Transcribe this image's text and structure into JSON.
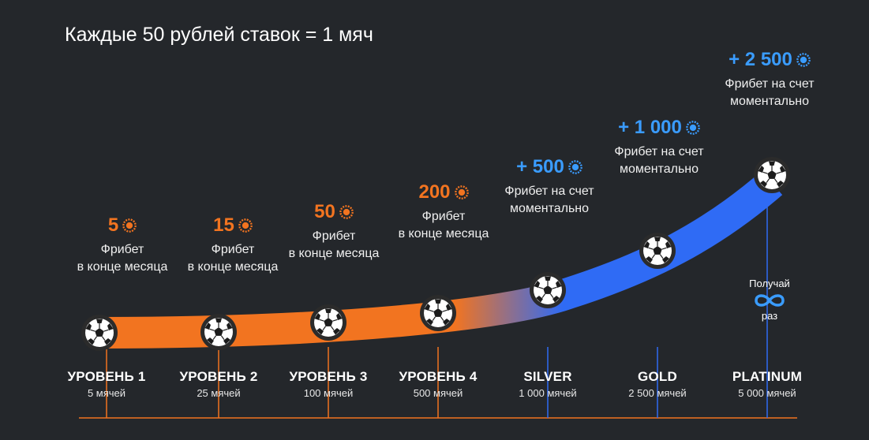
{
  "header": {
    "title": "Каждые 50 рублей ставок = 1 мяч"
  },
  "colors": {
    "orange": "#f27420",
    "blue": "#2f6bf5",
    "light_blue": "#3a9cff",
    "background": "#24272b"
  },
  "rewards": [
    {
      "amount": "5",
      "desc1": "Фрибет",
      "desc2": "в конце месяца",
      "coin": "orange-coin-icon"
    },
    {
      "amount": "15",
      "desc1": "Фрибет",
      "desc2": "в конце месяца",
      "coin": "orange-coin-icon"
    },
    {
      "amount": "50",
      "desc1": "Фрибет",
      "desc2": "в конце месяца",
      "coin": "orange-coin-icon"
    },
    {
      "amount": "200",
      "desc1": "Фрибет",
      "desc2": "в конце месяца",
      "coin": "orange-coin-icon"
    },
    {
      "amount": "+ 500",
      "desc1": "Фрибет на счет",
      "desc2": "моментально",
      "coin": "blue-coin-icon"
    },
    {
      "amount": "+ 1 000",
      "desc1": "Фрибет на счет",
      "desc2": "моментально",
      "coin": "blue-coin-icon"
    },
    {
      "amount": "+ 2 500",
      "desc1": "Фрибет на счет",
      "desc2": "моментально",
      "coin": "blue-coin-icon"
    }
  ],
  "levels": [
    {
      "name": "УРОВЕНЬ 1",
      "balls": "5 мячей"
    },
    {
      "name": "УРОВЕНЬ 2",
      "balls": "25 мячей"
    },
    {
      "name": "УРОВЕНЬ 3",
      "balls": "100 мячей"
    },
    {
      "name": "УРОВЕНЬ 4",
      "balls": "500 мячей"
    },
    {
      "name": "SILVER",
      "balls": "1 000 мячей"
    },
    {
      "name": "GOLD",
      "balls": "2 500 мячей"
    },
    {
      "name": "PLATINUM",
      "balls": "5 000 мячей"
    }
  ],
  "infinity": {
    "top": "Получай",
    "bottom": "раз",
    "icon": "infinity-icon"
  },
  "ball_icon": "soccer-ball-icon"
}
